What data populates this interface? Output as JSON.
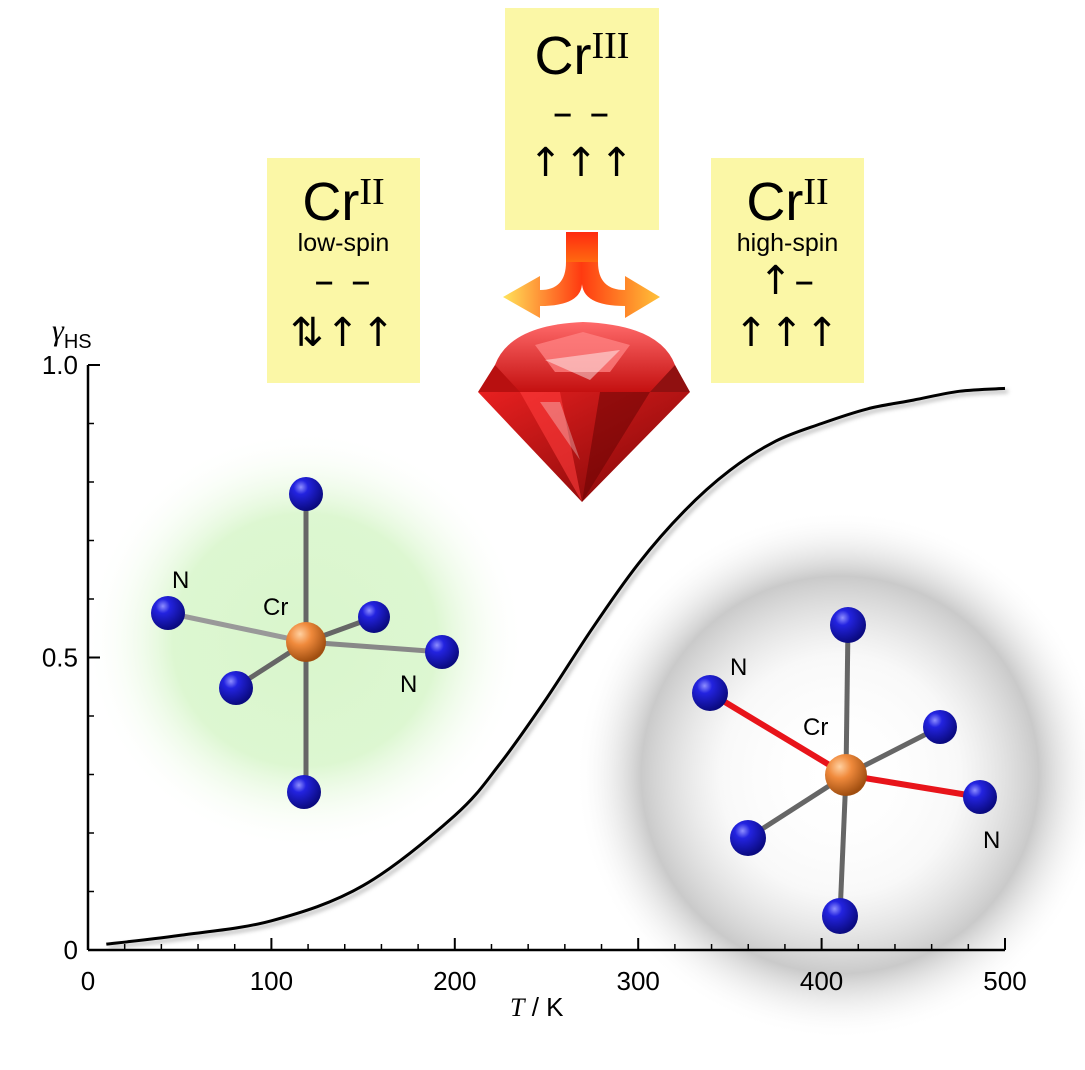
{
  "chart_data": {
    "type": "line",
    "ylabel_symbol": "γ",
    "ylabel_subscript": "HS",
    "xlabel_symbol": "T",
    "xlabel_unit": " / K",
    "xlim": [
      0,
      500
    ],
    "ylim": [
      0,
      1.0
    ],
    "xticks": [
      "0",
      "100",
      "200",
      "300",
      "400",
      "500"
    ],
    "yticks": [
      "0",
      "0.5",
      "1.0"
    ],
    "xtick_values": [
      0,
      100,
      200,
      300,
      400,
      500
    ],
    "ytick_values": [
      0,
      0.5,
      1.0
    ],
    "series": [
      {
        "x": [
          10,
          50,
          100,
          150,
          200,
          225,
          250,
          275,
          300,
          325,
          350,
          375,
          400,
          425,
          450,
          475,
          500
        ],
        "y": [
          0.01,
          0.025,
          0.05,
          0.11,
          0.23,
          0.32,
          0.43,
          0.55,
          0.66,
          0.75,
          0.82,
          0.87,
          0.9,
          0.925,
          0.94,
          0.955,
          0.96
        ]
      }
    ]
  },
  "boxes": {
    "cr3": {
      "element": "Cr",
      "oxidation": "III",
      "upper_orbitals": "– –",
      "lower_orbitals": "↑↑↑"
    },
    "cr2_ls": {
      "element": "Cr",
      "oxidation": "II",
      "state": "low-spin",
      "upper_orbitals": "– –",
      "lower_orbitals": "⇅↑↑"
    },
    "cr2_hs": {
      "element": "Cr",
      "oxidation": "II",
      "state": "high-spin",
      "upper_orbitals": "↑–",
      "lower_orbitals": "↑↑↑"
    }
  },
  "molecules": {
    "low_spin": {
      "center": "Cr",
      "ligand_label_1": "N",
      "ligand_label_2": "N"
    },
    "high_spin": {
      "center": "Cr",
      "ligand_label_1": "N",
      "ligand_label_2": "N"
    }
  },
  "colors": {
    "box_fill": "#fbf7a6",
    "nitrogen": "#1a1ad6",
    "chromium": "#f08a3c",
    "long_bond": "#e8141a",
    "ruby": "#d01818",
    "low_spin_halo": "#c8f0b8",
    "high_spin_halo": "#c8c8c8"
  }
}
